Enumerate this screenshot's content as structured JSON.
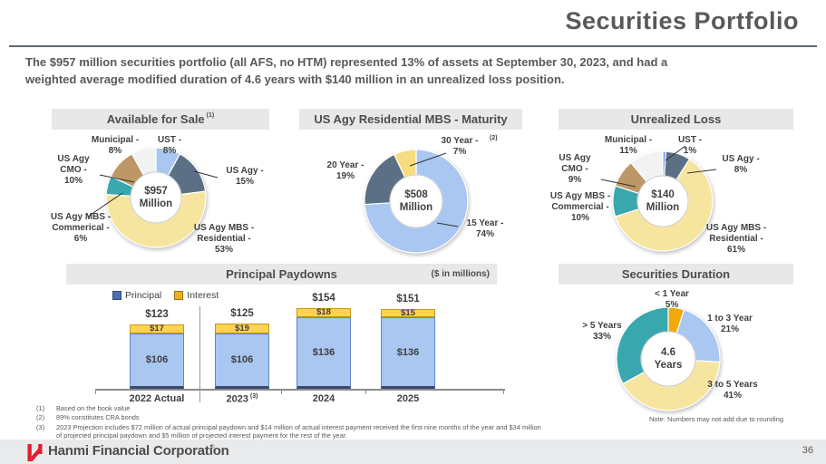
{
  "slide": {
    "title": "Securities Portfolio",
    "subtitle": "The $957 million securities portfolio (all AFS, no HTM) represented 13% of assets at September 30, 2023, and had a\nweighted average modified duration of 4.6 years with $140 million in an unrealized loss position.",
    "page_number": "36",
    "footer_brand": "Hanmi Financial Corporation",
    "brand_mark": "®",
    "footnotes": [
      {
        "marker": "(1)",
        "text": "Based on the book value"
      },
      {
        "marker": "(2)",
        "text": "89% constitutes CRA bonds"
      },
      {
        "marker": "(3)",
        "text": "2023 Projection includes $72 million of actual principal paydown and $14 million of actual interest payment received the first nine months of the year and $34 million of projected principal paydown and $5 million of projected interest payment for the rest of the year."
      }
    ]
  },
  "chart_data": [
    {
      "id": "available_for_sale",
      "type": "pie",
      "title": "Available for Sale",
      "title_footnote": "(1)",
      "center_label": "$957\nMillion",
      "slices": [
        {
          "label": "UST",
          "pct": 8,
          "display": "UST -\n8%",
          "color": "#A9C7F0"
        },
        {
          "label": "US Agy",
          "pct": 15,
          "display": "US Agy -\n15%",
          "color": "#5B7084"
        },
        {
          "label": "US Agy MBS - Residential",
          "pct": 53,
          "display": "US Agy MBS -\nResidential -\n53%",
          "color": "#F6E59F"
        },
        {
          "label": "US Agy MBS - Commerical",
          "pct": 6,
          "display": "US Agy MBS -\nCommerical -\n6%",
          "color": "#39A7AE"
        },
        {
          "label": "US Agy CMO",
          "pct": 10,
          "display": "US Agy\nCMO -\n10%",
          "color": "#BE9767"
        },
        {
          "label": "Municipal",
          "pct": 8,
          "display": "Municipal -\n8%",
          "color": "#F2F2F2"
        }
      ]
    },
    {
      "id": "us_agy_residential_mbs_maturity",
      "type": "pie",
      "title": "US Agy Residential MBS - Maturity",
      "center_label": "$508\nMillion",
      "slices": [
        {
          "label": "15 Year",
          "pct": 74,
          "display": "15 Year -\n74%",
          "color": "#A9C7F0"
        },
        {
          "label": "20 Year",
          "pct": 19,
          "display": "20 Year -\n19%",
          "color": "#5B7084"
        },
        {
          "label": "30 Year",
          "pct": 7,
          "display": "30 Year -\n7%",
          "footnote": "(2)",
          "color": "#F6DC7E"
        }
      ]
    },
    {
      "id": "unrealized_loss",
      "type": "pie",
      "title": "Unrealized Loss",
      "center_label": "$140\nMillion",
      "slices": [
        {
          "label": "UST",
          "pct": 1,
          "display": "UST -\n1%",
          "color": "#6D9EEB"
        },
        {
          "label": "US Agy",
          "pct": 8,
          "display": "US Agy -\n8%",
          "color": "#5B7084"
        },
        {
          "label": "US Agy MBS - Residential",
          "pct": 61,
          "display": "US Agy MBS -\nResidential -\n61%",
          "color": "#F6E59F"
        },
        {
          "label": "US Agy MBS - Commercial",
          "pct": 10,
          "display": "US Agy MBS -\nCommercial -\n10%",
          "color": "#39A7AE"
        },
        {
          "label": "US Agy CMO",
          "pct": 9,
          "display": "US Agy\nCMO -\n9%",
          "color": "#BE9767"
        },
        {
          "label": "Municipal",
          "pct": 11,
          "display": "Municipal -\n11%",
          "color": "#F2F2F2"
        }
      ]
    },
    {
      "id": "principal_paydowns",
      "type": "bar",
      "title": "Principal Paydowns",
      "units": "($ in millions)",
      "legend_position": "top-left",
      "categories": [
        "2022 Actual",
        "2023",
        "2024",
        "2025"
      ],
      "category_footnotes": [
        "",
        "(3)",
        "",
        ""
      ],
      "series": [
        {
          "name": "Principal",
          "values": [
            106,
            106,
            136,
            136
          ],
          "fill": "#A9C7F0",
          "border": "#6384C6",
          "marker": "#4A6FB5"
        },
        {
          "name": "Interest",
          "values": [
            17,
            19,
            18,
            15
          ],
          "fill": "#FFD34D",
          "border": "#C9971B",
          "marker": "#EFAF1E"
        }
      ],
      "totals": [
        123,
        125,
        154,
        151
      ]
    },
    {
      "id": "securities_duration",
      "type": "pie",
      "title": "Securities Duration",
      "center_label": "4.6\nYears",
      "note": "Note: Numbers may not add due to rounding",
      "slices": [
        {
          "label": "< 1 Year",
          "pct": 5,
          "display": "< 1 Year\n5%",
          "color": "#F2A90C"
        },
        {
          "label": "1 to 3 Year",
          "pct": 21,
          "display": "1 to 3 Year\n21%",
          "color": "#A9C7F0"
        },
        {
          "label": "3 to 5 Years",
          "pct": 41,
          "display": "3 to 5 Years\n41%",
          "color": "#F6E59F"
        },
        {
          "label": "> 5 Years",
          "pct": 33,
          "display": "> 5 Years\n33%",
          "color": "#39A7AE"
        }
      ]
    }
  ]
}
